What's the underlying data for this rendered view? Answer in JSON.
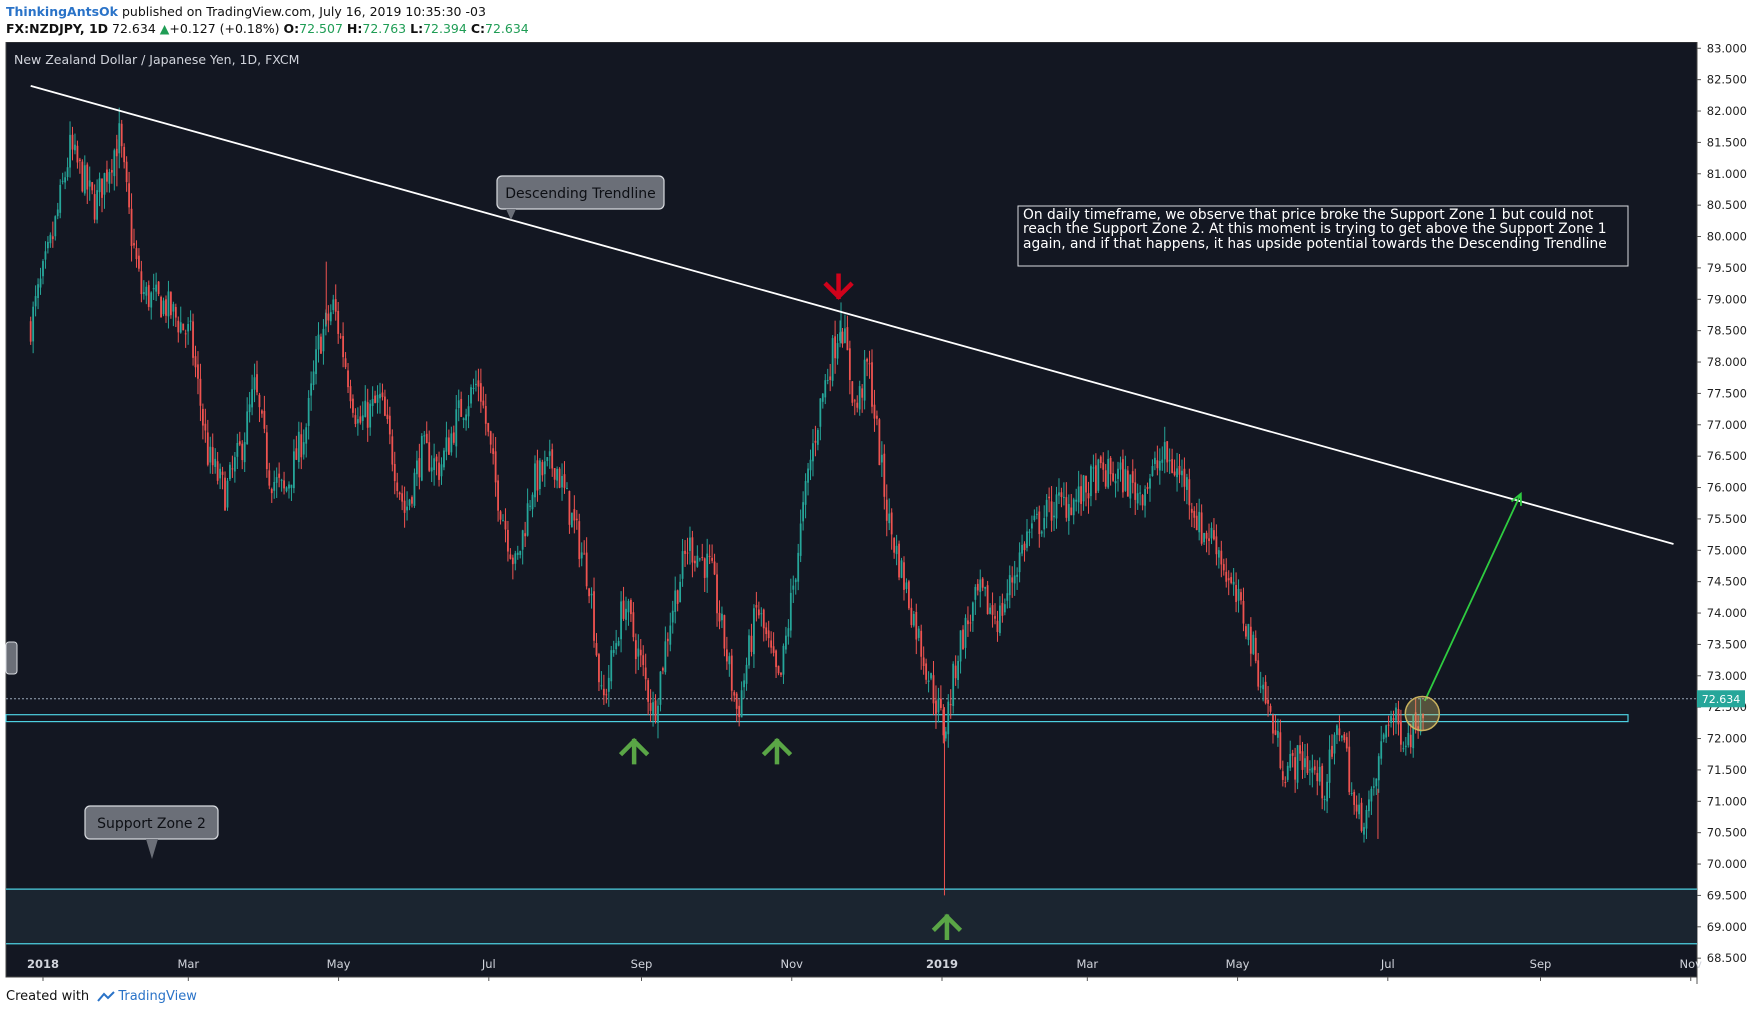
{
  "header": {
    "author": "ThinkingAntsOk",
    "published": "published on TradingView.com, July 16, 2019 10:35:30 -03",
    "symbol": "FX:NZDJPY, 1D",
    "last": "72.634",
    "change": "+0.127 (+0.18%)",
    "open_label": "O:",
    "open": "72.507",
    "high_label": "H:",
    "high": "72.763",
    "low_label": "L:",
    "low": "72.394",
    "close_label": "C:",
    "close": "72.634"
  },
  "footer": {
    "created_with": "Created with",
    "brand": "TradingView"
  },
  "colors": {
    "background": "#131722",
    "bull": "#26a69a",
    "bear": "#ef5350",
    "zone": "#4dd0e1",
    "trendline": "#ffffff",
    "projection": "#2ecc40",
    "up_arrow": "#5aa646",
    "down_arrow": "#d0021b"
  },
  "chart_data": {
    "type": "candlestick",
    "title": "New Zealand Dollar / Japanese Yen, 1D, FXCM",
    "y_range": [
      68.2,
      83.1
    ],
    "y_ticks": [
      "83.000",
      "82.500",
      "82.000",
      "81.500",
      "81.000",
      "80.500",
      "80.000",
      "79.500",
      "79.000",
      "78.500",
      "78.000",
      "77.500",
      "77.000",
      "76.500",
      "76.000",
      "75.500",
      "75.000",
      "74.500",
      "74.000",
      "73.500",
      "73.000",
      "72.500",
      "72.000",
      "71.500",
      "71.000",
      "70.500",
      "70.000",
      "69.500",
      "69.000",
      "68.500"
    ],
    "x_labels": [
      "2018",
      "Mar",
      "May",
      "Jul",
      "Sep",
      "Nov",
      "2019",
      "Mar",
      "May",
      "Jul",
      "Sep",
      "Nov"
    ],
    "last_price": "72.634",
    "support_zone_1": [
      72.27,
      72.38
    ],
    "support_zone_2": [
      68.73,
      69.6
    ],
    "trendline": {
      "from": [
        "2017-12-27",
        82.4
      ],
      "to": [
        "2019-10-25",
        75.1
      ]
    },
    "projection": {
      "from": [
        "2019-07-16",
        72.6
      ],
      "to": [
        "2019-08-24",
        75.9
      ]
    },
    "down_markers": [
      {
        "date": "2018-11-20",
        "y": 79.2
      }
    ],
    "up_markers": [
      {
        "date": "2018-08-29",
        "y": 71.8
      },
      {
        "date": "2018-10-26",
        "y": 71.8
      },
      {
        "date": "2019-01-03",
        "y": 69.0
      }
    ],
    "highlight": {
      "date": "2019-07-15",
      "y": 72.4
    },
    "annotations": [
      {
        "id": "descending-trendline",
        "text": "Descending Trendline"
      },
      {
        "id": "support-zone-2",
        "text": "Support Zone 2"
      }
    ],
    "note": "On daily timeframe, we observe that price broke the Support Zone 1 but could not reach the Support Zone 2. At this moment is trying to get above the Support Zone 1 again, and if that happens, it has upside potential towards the Descending Trendline",
    "price_path": [
      [
        "2017-12-27",
        78.6
      ],
      [
        "2018-01-05",
        80.0
      ],
      [
        "2018-01-12",
        81.4
      ],
      [
        "2018-01-22",
        80.5
      ],
      [
        "2018-02-01",
        81.6
      ],
      [
        "2018-02-06",
        80.0
      ],
      [
        "2018-02-10",
        79.1
      ],
      [
        "2018-02-20",
        78.9
      ],
      [
        "2018-03-02",
        78.4
      ],
      [
        "2018-03-09",
        76.5
      ],
      [
        "2018-03-16",
        75.9
      ],
      [
        "2018-03-23",
        76.7
      ],
      [
        "2018-03-28",
        77.6
      ],
      [
        "2018-04-03",
        76.2
      ],
      [
        "2018-04-09",
        75.9
      ],
      [
        "2018-04-18",
        77.0
      ],
      [
        "2018-04-23",
        78.3
      ],
      [
        "2018-04-29",
        78.9
      ],
      [
        "2018-05-09",
        77.0
      ],
      [
        "2018-05-18",
        77.4
      ],
      [
        "2018-05-28",
        75.6
      ],
      [
        "2018-06-04",
        76.6
      ],
      [
        "2018-06-11",
        76.3
      ],
      [
        "2018-06-19",
        77.2
      ],
      [
        "2018-06-27",
        77.7
      ],
      [
        "2018-07-04",
        76.0
      ],
      [
        "2018-07-12",
        74.7
      ],
      [
        "2018-07-19",
        76.1
      ],
      [
        "2018-07-28",
        76.4
      ],
      [
        "2018-08-06",
        75.2
      ],
      [
        "2018-08-11",
        74.5
      ],
      [
        "2018-08-16",
        72.5
      ],
      [
        "2018-08-25",
        74.2
      ],
      [
        "2018-09-06",
        72.4
      ],
      [
        "2018-09-13",
        74.0
      ],
      [
        "2018-09-20",
        75.1
      ],
      [
        "2018-09-29",
        74.7
      ],
      [
        "2018-10-10",
        72.4
      ],
      [
        "2018-10-18",
        74.1
      ],
      [
        "2018-10-27",
        72.8
      ],
      [
        "2018-11-08",
        76.3
      ],
      [
        "2018-11-13",
        77.4
      ],
      [
        "2018-11-21",
        78.7
      ],
      [
        "2018-11-27",
        77.2
      ],
      [
        "2018-12-02",
        78.0
      ],
      [
        "2018-12-10",
        75.5
      ],
      [
        "2018-12-20",
        74.0
      ],
      [
        "2018-12-26",
        73.1
      ],
      [
        "2019-01-02",
        72.1
      ],
      [
        "2019-01-08",
        73.5
      ],
      [
        "2019-01-16",
        74.3
      ],
      [
        "2019-01-24",
        73.9
      ],
      [
        "2019-02-04",
        75.2
      ],
      [
        "2019-02-15",
        75.7
      ],
      [
        "2019-02-25",
        75.8
      ],
      [
        "2019-03-05",
        76.2
      ],
      [
        "2019-03-14",
        76.2
      ],
      [
        "2019-03-22",
        75.9
      ],
      [
        "2019-04-01",
        76.5
      ],
      [
        "2019-04-10",
        76.1
      ],
      [
        "2019-04-16",
        75.3
      ],
      [
        "2019-04-22",
        75.2
      ],
      [
        "2019-04-28",
        74.4
      ],
      [
        "2019-05-04",
        73.9
      ],
      [
        "2019-05-12",
        72.7
      ],
      [
        "2019-05-20",
        71.5
      ],
      [
        "2019-05-28",
        71.7
      ],
      [
        "2019-06-05",
        71.2
      ],
      [
        "2019-06-12",
        72.3
      ],
      [
        "2019-06-18",
        70.7
      ],
      [
        "2019-06-24",
        70.9
      ],
      [
        "2019-07-01",
        72.4
      ],
      [
        "2019-07-09",
        72.0
      ],
      [
        "2019-07-16",
        72.6
      ]
    ]
  }
}
